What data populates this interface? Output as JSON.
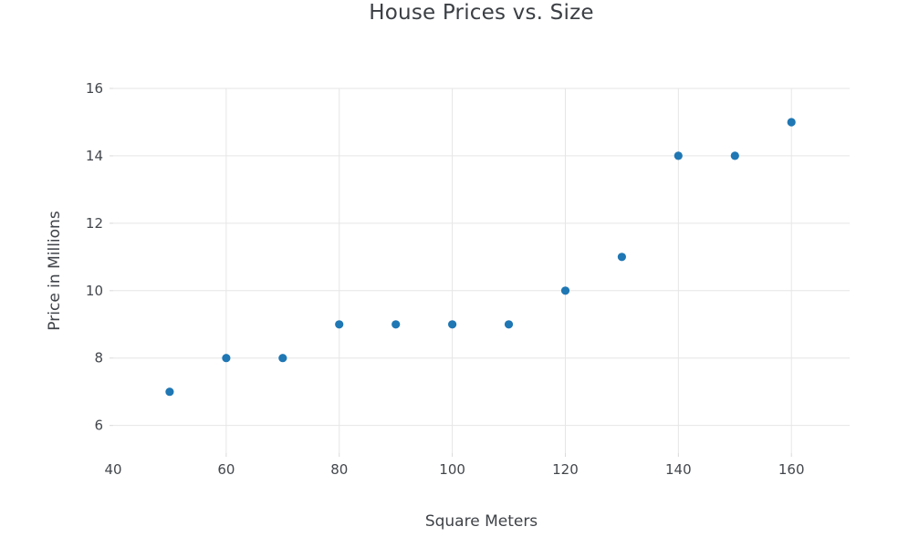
{
  "chart_data": {
    "type": "scatter",
    "title": "House Prices vs. Size",
    "xlabel": "Square Meters",
    "ylabel": "Price in Millions",
    "x": [
      50,
      60,
      70,
      80,
      90,
      100,
      110,
      120,
      130,
      140,
      150,
      160
    ],
    "y": [
      7,
      8,
      8,
      9,
      9,
      9,
      9,
      10,
      11,
      14,
      14,
      15
    ],
    "xticks": [
      40,
      60,
      80,
      100,
      120,
      140,
      160
    ],
    "yticks": [
      6,
      8,
      10,
      12,
      14,
      16
    ],
    "xlim": [
      40,
      170.3
    ],
    "ylim": [
      5.18,
      16.0
    ],
    "grid": true,
    "legend": false,
    "marker_color": "#1f77b4",
    "grid_color": "#e6e6e6",
    "tick_color": "#d9d9d9",
    "background_color": "#ffffff"
  }
}
